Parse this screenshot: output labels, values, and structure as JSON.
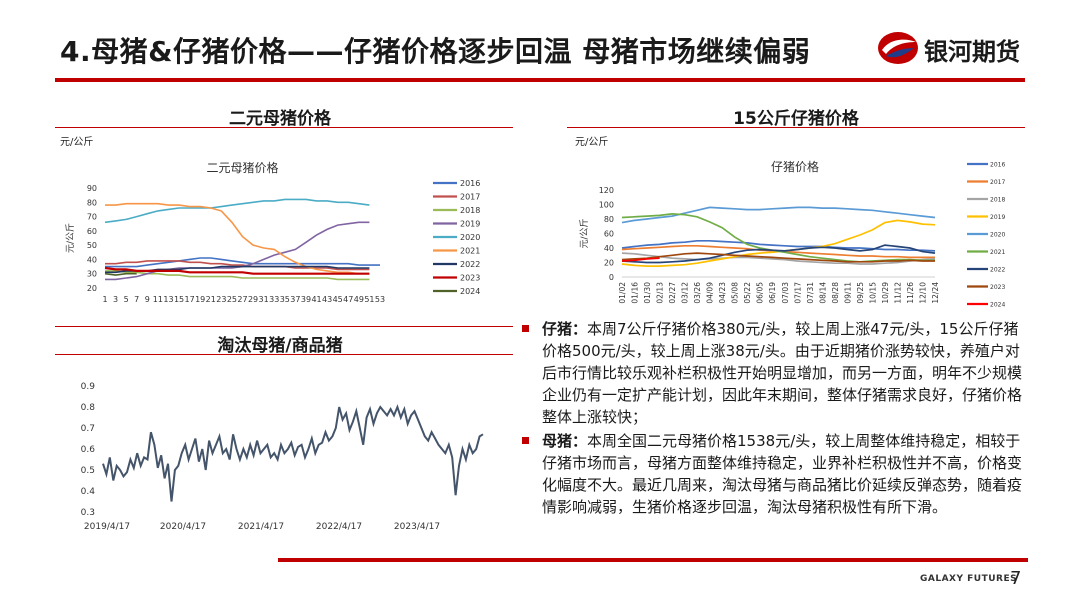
{
  "header": {
    "title": "4.母猪&仔猪价格——仔猪价格逐步回温 母猪市场继续偏弱",
    "brand": "银河期货"
  },
  "footer": {
    "brand": "GALAXY FUTURES",
    "page": "7"
  },
  "colors": {
    "accent": "#c00000",
    "text": "#1a1a1a"
  },
  "panels": {
    "sow": {
      "heading": "二元母猪价格",
      "unit": "元/公斤"
    },
    "piglet": {
      "heading": "15公斤仔猪价格",
      "unit": "元/公斤"
    },
    "ratio": {
      "heading": "淘汰母猪/商品猪"
    }
  },
  "commentary": [
    {
      "head": "仔猪：",
      "body": "本周7公斤仔猪价格380元/头，较上周上涨47元/头，15公斤仔猪价格500元/头，较上周上涨38元/头。由于近期猪价涨势较快，养殖户对后市行情比较乐观补栏积极性开始明显增加，而另一方面，明年不少规模企业仍有一定扩产能计划，因此年末期间，整体仔猪需求良好，仔猪价格整体上涨较快；"
    },
    {
      "head": "母猪：",
      "body": "本周全国二元母猪价格1538元/头，较上周整体维持稳定，相较于仔猪市场而言，母猪方面整体维持稳定，业界补栏积极性并不高，价格变化幅度不大。最近几周来，淘汰母猪与商品猪比价延续反弹态势，随着疫情影响减弱，生猪价格逐步回温，淘汰母猪积极性有所下滑。"
    }
  ],
  "chart_data": [
    {
      "id": "sow",
      "type": "line",
      "title": "二元母猪价格",
      "ylabel": "元/公斤",
      "ylim": [
        20,
        90
      ],
      "yticks": [
        20,
        30,
        40,
        50,
        60,
        70,
        80,
        90
      ],
      "x": [
        1,
        3,
        5,
        7,
        9,
        11,
        13,
        15,
        17,
        19,
        21,
        23,
        25,
        27,
        29,
        31,
        33,
        35,
        37,
        39,
        41,
        43,
        45,
        47,
        49,
        51,
        53
      ],
      "series": [
        {
          "name": "2016",
          "color": "#4472c4",
          "values": [
            35,
            35,
            35,
            35,
            36,
            37,
            38,
            39,
            40,
            41,
            41,
            40,
            39,
            38,
            37,
            37,
            37,
            37,
            37,
            37,
            37,
            37,
            37,
            37,
            36,
            36,
            36
          ]
        },
        {
          "name": "2017",
          "color": "#c0504d",
          "values": [
            37,
            37,
            38,
            38,
            39,
            39,
            39,
            39,
            38,
            38,
            37,
            37,
            36,
            36,
            35,
            35,
            35,
            35,
            34,
            34,
            34,
            34,
            33,
            33,
            33,
            33,
            null
          ]
        },
        {
          "name": "2018",
          "color": "#9bbb59",
          "values": [
            32,
            32,
            31,
            31,
            30,
            30,
            29,
            29,
            28,
            28,
            28,
            28,
            28,
            27,
            27,
            27,
            27,
            27,
            27,
            27,
            27,
            27,
            26,
            26,
            26,
            26,
            null
          ]
        },
        {
          "name": "2019",
          "color": "#8064a2",
          "values": [
            26,
            26,
            27,
            28,
            30,
            32,
            33,
            34,
            34,
            34,
            34,
            34,
            34,
            35,
            37,
            40,
            43,
            45,
            47,
            52,
            57,
            61,
            64,
            65,
            66,
            66,
            null
          ]
        },
        {
          "name": "2020",
          "color": "#4bacc6",
          "values": [
            66,
            67,
            68,
            70,
            72,
            74,
            75,
            76,
            76,
            76,
            76,
            77,
            78,
            79,
            80,
            81,
            81,
            82,
            82,
            82,
            81,
            81,
            80,
            80,
            79,
            78,
            null
          ]
        },
        {
          "name": "2021",
          "color": "#f79646",
          "values": [
            78,
            78,
            79,
            79,
            79,
            79,
            78,
            78,
            77,
            77,
            76,
            74,
            66,
            56,
            50,
            48,
            47,
            42,
            38,
            35,
            33,
            32,
            31,
            31,
            30,
            30,
            null
          ]
        },
        {
          "name": "2022",
          "color": "#1f3864",
          "values": [
            31,
            31,
            32,
            32,
            32,
            33,
            33,
            33,
            34,
            34,
            34,
            35,
            35,
            35,
            35,
            35,
            35,
            35,
            35,
            35,
            35,
            35,
            34,
            34,
            34,
            34,
            null
          ]
        },
        {
          "name": "2023",
          "color": "#c00000",
          "values": [
            34,
            33,
            33,
            32,
            32,
            32,
            32,
            32,
            31,
            31,
            31,
            31,
            31,
            31,
            30,
            30,
            30,
            30,
            30,
            30,
            30,
            30,
            30,
            30,
            30,
            30,
            null
          ]
        },
        {
          "name": "2024",
          "color": "#4f6228",
          "values": [
            30,
            29,
            30,
            30,
            null,
            null,
            null,
            null,
            null,
            null,
            null,
            null,
            null,
            null,
            null,
            null,
            null,
            null,
            null,
            null,
            null,
            null,
            null,
            null,
            null,
            null,
            null
          ]
        }
      ],
      "legend": [
        "2016",
        "2017",
        "2018",
        "2019",
        "2020",
        "2021",
        "2022",
        "2023",
        "2024"
      ],
      "inner_title": "二元母猪价格"
    },
    {
      "id": "piglet",
      "type": "line",
      "title": "仔猪价格",
      "ylabel": "元/公斤",
      "ylim": [
        0,
        120
      ],
      "yticks": [
        0,
        20,
        40,
        60,
        80,
        100,
        120
      ],
      "categories": [
        "01/02",
        "01/16",
        "01/30",
        "02/13",
        "02/27",
        "03/12",
        "03/26",
        "04/09",
        "04/23",
        "05/08",
        "05/22",
        "06/05",
        "06/19",
        "07/03",
        "07/17",
        "07/31",
        "08/14",
        "08/28",
        "09/11",
        "09/25",
        "10/15",
        "10/29",
        "11/12",
        "11/26",
        "12/10",
        "12/24"
      ],
      "series": [
        {
          "name": "2016",
          "color": "#4472c4",
          "values": [
            40,
            42,
            44,
            45,
            47,
            48,
            50,
            50,
            49,
            48,
            47,
            45,
            44,
            43,
            42,
            42,
            42,
            41,
            40,
            40,
            39,
            38,
            38,
            37,
            37,
            36
          ]
        },
        {
          "name": "2017",
          "color": "#ed7d31",
          "values": [
            38,
            39,
            40,
            41,
            42,
            43,
            43,
            42,
            41,
            40,
            39,
            37,
            36,
            35,
            34,
            33,
            32,
            31,
            30,
            29,
            29,
            28,
            28,
            27,
            27,
            27
          ]
        },
        {
          "name": "2018",
          "color": "#a5a5a5",
          "values": [
            33,
            32,
            30,
            28,
            26,
            25,
            24,
            25,
            26,
            27,
            27,
            26,
            25,
            24,
            22,
            21,
            20,
            19,
            19,
            18,
            18,
            19,
            20,
            22,
            24,
            25
          ]
        },
        {
          "name": "2019",
          "color": "#ffc000",
          "values": [
            18,
            16,
            15,
            15,
            16,
            17,
            19,
            22,
            25,
            28,
            31,
            33,
            34,
            36,
            38,
            40,
            42,
            46,
            52,
            58,
            65,
            75,
            78,
            76,
            73,
            72
          ]
        },
        {
          "name": "2020",
          "color": "#5b9bd5",
          "values": [
            75,
            78,
            80,
            82,
            84,
            88,
            92,
            96,
            95,
            94,
            93,
            93,
            94,
            95,
            96,
            96,
            95,
            95,
            94,
            93,
            92,
            90,
            88,
            86,
            84,
            82
          ]
        },
        {
          "name": "2021",
          "color": "#70ad47",
          "values": [
            82,
            83,
            84,
            85,
            87,
            86,
            83,
            76,
            68,
            55,
            45,
            40,
            37,
            34,
            31,
            28,
            26,
            24,
            22,
            21,
            22,
            23,
            24,
            24,
            23,
            23
          ]
        },
        {
          "name": "2022",
          "color": "#264478",
          "values": [
            22,
            21,
            20,
            20,
            21,
            22,
            24,
            26,
            30,
            34,
            37,
            38,
            37,
            36,
            38,
            40,
            41,
            40,
            38,
            36,
            38,
            44,
            42,
            40,
            35,
            33
          ]
        },
        {
          "name": "2023",
          "color": "#9e480e",
          "values": [
            24,
            25,
            26,
            28,
            30,
            32,
            33,
            32,
            31,
            30,
            29,
            28,
            27,
            26,
            25,
            24,
            23,
            22,
            21,
            21,
            21,
            22,
            22,
            23,
            22,
            22
          ]
        },
        {
          "name": "2024",
          "color": "#ff0000",
          "values": [
            22,
            23,
            25,
            26,
            null,
            null,
            null,
            null,
            null,
            null,
            null,
            null,
            null,
            null,
            null,
            null,
            null,
            null,
            null,
            null,
            null,
            null,
            null,
            null,
            null,
            null
          ]
        }
      ],
      "legend": [
        "2016",
        "2017",
        "2018",
        "2019",
        "2020",
        "2021",
        "2022",
        "2023",
        "2024"
      ],
      "inner_title": "仔猪价格"
    },
    {
      "id": "ratio",
      "type": "line",
      "title": "淘汰母猪/商品猪",
      "ylim": [
        0.3,
        0.9
      ],
      "yticks": [
        0.3,
        0.4,
        0.5,
        0.6,
        0.7,
        0.8,
        0.9
      ],
      "x_tick_labels": [
        "2019/4/17",
        "2020/4/17",
        "2021/4/17",
        "2022/4/17",
        "2023/4/17"
      ],
      "color": "#44546a",
      "values": [
        0.53,
        0.48,
        0.56,
        0.45,
        0.52,
        0.5,
        0.47,
        0.49,
        0.55,
        0.51,
        0.58,
        0.52,
        0.56,
        0.55,
        0.68,
        0.62,
        0.51,
        0.57,
        0.46,
        0.53,
        0.35,
        0.5,
        0.52,
        0.58,
        0.62,
        0.55,
        0.6,
        0.65,
        0.54,
        0.6,
        0.5,
        0.64,
        0.58,
        0.62,
        0.66,
        0.58,
        0.6,
        0.55,
        0.67,
        0.6,
        0.55,
        0.6,
        0.56,
        0.62,
        0.57,
        0.64,
        0.58,
        0.6,
        0.62,
        0.56,
        0.58,
        0.55,
        0.62,
        0.58,
        0.6,
        0.63,
        0.57,
        0.61,
        0.62,
        0.56,
        0.6,
        0.65,
        0.58,
        0.62,
        0.63,
        0.68,
        0.64,
        0.66,
        0.7,
        0.8,
        0.74,
        0.77,
        0.69,
        0.73,
        0.78,
        0.7,
        0.62,
        0.75,
        0.79,
        0.72,
        0.77,
        0.8,
        0.78,
        0.76,
        0.79,
        0.76,
        0.8,
        0.75,
        0.79,
        0.72,
        0.76,
        0.78,
        0.74,
        0.7,
        0.66,
        0.64,
        0.68,
        0.65,
        0.62,
        0.6,
        0.58,
        0.62,
        0.56,
        0.38,
        0.52,
        0.6,
        0.55,
        0.62,
        0.58,
        0.6,
        0.66,
        0.67
      ]
    }
  ]
}
